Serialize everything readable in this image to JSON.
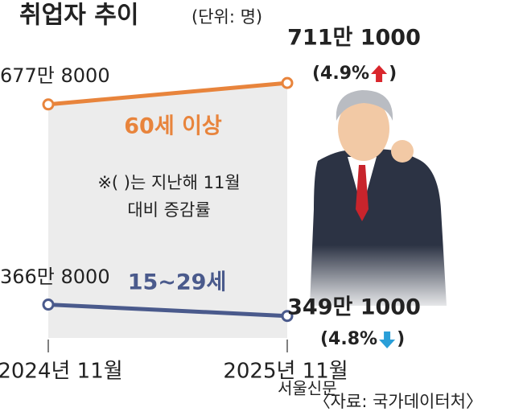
{
  "chart_data": {
    "type": "line",
    "title": "취업자 추이",
    "unit": "(단위: 명)",
    "categories": [
      "2024년 11월",
      "2025년 11월"
    ],
    "ylim": [
      3000000,
      7500000
    ],
    "series": [
      {
        "name": "60세 이상",
        "color": "#e8843c",
        "values": [
          6778000,
          7111000
        ],
        "value_labels": [
          "677만 8000",
          "711만 1000"
        ],
        "change_label": [
          "(4.9%",
          ")"
        ],
        "arrow_color": "#d9262c"
      },
      {
        "name": "15~29세",
        "color": "#4a5a8c",
        "values": [
          3668000,
          3491000
        ],
        "value_labels": [
          "366만 8000",
          "349만 1000"
        ],
        "change_label": [
          "(4.8%",
          ")"
        ],
        "arrow_color": "#2a9fd8"
      }
    ],
    "note": [
      "※(  )는 지난해 11월",
      "대비 증감률"
    ],
    "source": "〈자료: 국가데이터처〉",
    "watermark": "서울신문"
  }
}
